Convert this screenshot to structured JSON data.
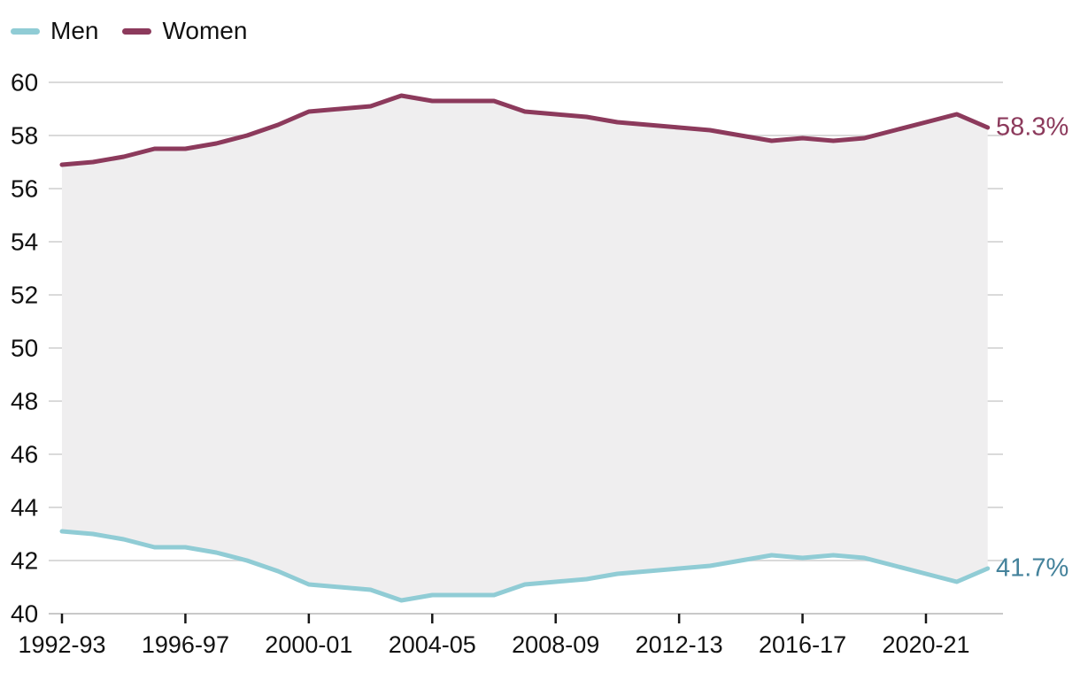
{
  "chart_data": {
    "type": "line",
    "title": "",
    "xlabel": "",
    "ylabel": "",
    "ylim": [
      40,
      60
    ],
    "yticks": [
      40,
      42,
      44,
      46,
      48,
      50,
      52,
      54,
      56,
      58,
      60
    ],
    "grid": "horizontal",
    "legend_position": "top-left",
    "gridline_color": "#dadada",
    "baseline_color": "#c9c9c9",
    "tick_color": "#171717",
    "text_color": "#121212",
    "band_fill": "#efeeef",
    "x": [
      "1992-93",
      "1993-94",
      "1994-95",
      "1995-96",
      "1996-97",
      "1997-98",
      "1998-99",
      "1999-00",
      "2000-01",
      "2001-02",
      "2002-03",
      "2003-04",
      "2004-05",
      "2005-06",
      "2006-07",
      "2007-08",
      "2008-09",
      "2009-10",
      "2010-11",
      "2011-12",
      "2012-13",
      "2013-14",
      "2014-15",
      "2015-16",
      "2016-17",
      "2017-18",
      "2018-19",
      "2019-20",
      "2020-21",
      "2021-22",
      "2022-23"
    ],
    "xtick_labels": [
      "1992-93",
      "1996-97",
      "2000-01",
      "2004-05",
      "2008-09",
      "2012-13",
      "2016-17",
      "2020-21"
    ],
    "series": [
      {
        "name": "Men",
        "color": "#90ccd5",
        "label_color": "#44829b",
        "end_label": "41.7%",
        "values": [
          43.1,
          43.0,
          42.8,
          42.5,
          42.5,
          42.3,
          42.0,
          41.6,
          41.1,
          41.0,
          40.9,
          40.5,
          40.7,
          40.7,
          40.7,
          41.1,
          41.2,
          41.3,
          41.5,
          41.6,
          41.7,
          41.8,
          42.0,
          42.2,
          42.1,
          42.2,
          42.1,
          41.8,
          41.5,
          41.2,
          41.7
        ]
      },
      {
        "name": "Women",
        "color": "#8c3a5c",
        "label_color": "#8c3a5c",
        "end_label": "58.3%",
        "values": [
          56.9,
          57.0,
          57.2,
          57.5,
          57.5,
          57.7,
          58.0,
          58.4,
          58.9,
          59.0,
          59.1,
          59.5,
          59.3,
          59.3,
          59.3,
          58.9,
          58.8,
          58.7,
          58.5,
          58.4,
          58.3,
          58.2,
          58.0,
          57.8,
          57.9,
          57.8,
          57.9,
          58.2,
          58.5,
          58.8,
          58.3
        ]
      }
    ]
  }
}
